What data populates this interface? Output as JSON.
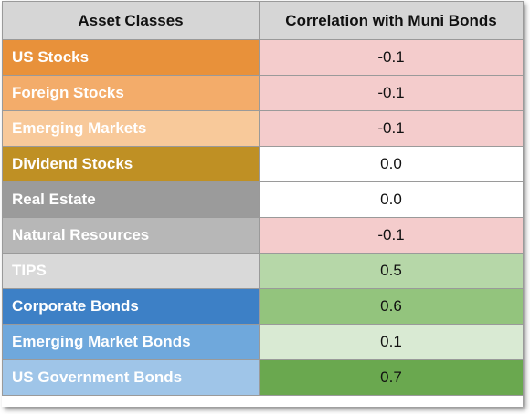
{
  "table": {
    "headers": [
      "Asset Classes",
      "Correlation with Muni Bonds"
    ],
    "rows": [
      {
        "asset": "US Stocks",
        "value": "-0.1",
        "asset_color": "#e8913a",
        "value_color": "#f4cccc"
      },
      {
        "asset": "Foreign Stocks",
        "value": "-0.1",
        "asset_color": "#f3ac6a",
        "value_color": "#f4cccc"
      },
      {
        "asset": "Emerging Markets",
        "value": "-0.1",
        "asset_color": "#f8c99a",
        "value_color": "#f4cccc"
      },
      {
        "asset": "Dividend Stocks",
        "value": "0.0",
        "asset_color": "#bf9024",
        "value_color": "#ffffff"
      },
      {
        "asset": "Real Estate",
        "value": "0.0",
        "asset_color": "#9b9b9b",
        "value_color": "#ffffff"
      },
      {
        "asset": "Natural Resources",
        "value": "-0.1",
        "asset_color": "#b7b7b7",
        "value_color": "#f4cccc"
      },
      {
        "asset": "TIPS",
        "value": "0.5",
        "asset_color": "#d9d9d9",
        "value_color": "#b6d7a8"
      },
      {
        "asset": "Corporate Bonds",
        "value": "0.6",
        "asset_color": "#3d80c6",
        "value_color": "#93c47d"
      },
      {
        "asset": "Emerging Market Bonds",
        "value": "0.1",
        "asset_color": "#6fa8dc",
        "value_color": "#d9ead3"
      },
      {
        "asset": "US Government Bonds",
        "value": "0.7",
        "asset_color": "#9fc5e8",
        "value_color": "#6aa84f"
      }
    ]
  }
}
